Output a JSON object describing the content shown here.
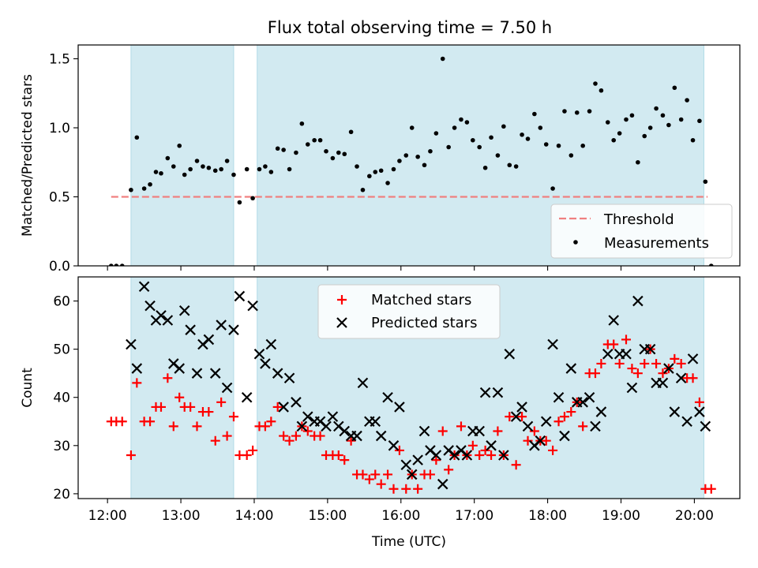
{
  "title": "Flux total observing time = 7.50 h",
  "colors": {
    "band": "#add8e6",
    "threshold": "#f08080",
    "measurement": "#000000",
    "matched": "#ff0000",
    "predicted": "#000000"
  },
  "chart_data": [
    {
      "type": "scatter",
      "panel": "top",
      "ylabel": "Matched/Predicted stars",
      "xlabel": "",
      "xlim": [
        11.6,
        20.62
      ],
      "ylim": [
        0.0,
        1.6
      ],
      "x_ticks": [
        12,
        13,
        14,
        15,
        16,
        17,
        18,
        19,
        20
      ],
      "y_ticks": [
        0.0,
        0.5,
        1.0,
        1.5
      ],
      "y_tick_labels": [
        "0.0",
        "0.5",
        "1.0",
        "1.5"
      ],
      "shaded_intervals": [
        [
          12.32,
          13.72
        ],
        [
          14.04,
          20.13
        ]
      ],
      "threshold": {
        "name": "Threshold",
        "value": 0.5,
        "x_range": [
          12.05,
          20.18
        ]
      },
      "legend": {
        "position": "bottom-right",
        "entries": [
          "Threshold",
          "Measurements"
        ]
      },
      "series": [
        {
          "name": "Measurements",
          "x": [
            12.05,
            12.12,
            12.2,
            12.32,
            12.4,
            12.5,
            12.58,
            12.66,
            12.73,
            12.82,
            12.9,
            12.98,
            13.05,
            13.13,
            13.22,
            13.3,
            13.38,
            13.47,
            13.55,
            13.63,
            13.72,
            13.8,
            13.9,
            13.98,
            14.07,
            14.15,
            14.23,
            14.32,
            14.4,
            14.48,
            14.57,
            14.65,
            14.73,
            14.82,
            14.9,
            14.98,
            15.07,
            15.15,
            15.23,
            15.32,
            15.4,
            15.48,
            15.57,
            15.65,
            15.73,
            15.82,
            15.9,
            15.98,
            16.07,
            16.15,
            16.23,
            16.32,
            16.4,
            16.48,
            16.57,
            16.65,
            16.73,
            16.82,
            16.9,
            16.98,
            17.07,
            17.15,
            17.23,
            17.32,
            17.4,
            17.48,
            17.57,
            17.65,
            17.73,
            17.82,
            17.9,
            17.98,
            18.07,
            18.15,
            18.23,
            18.32,
            18.4,
            18.48,
            18.57,
            18.65,
            18.73,
            18.82,
            18.9,
            18.98,
            19.07,
            19.15,
            19.23,
            19.32,
            19.4,
            19.48,
            19.57,
            19.65,
            19.73,
            19.82,
            19.9,
            19.98,
            20.07,
            20.15,
            20.23
          ],
          "y": [
            0.0,
            0.0,
            0.0,
            0.55,
            0.93,
            0.56,
            0.59,
            0.68,
            0.67,
            0.78,
            0.72,
            0.87,
            0.66,
            0.7,
            0.76,
            0.72,
            0.71,
            0.69,
            0.7,
            0.76,
            0.66,
            0.46,
            0.7,
            0.49,
            0.7,
            0.72,
            0.68,
            0.85,
            0.84,
            0.7,
            0.82,
            1.03,
            0.88,
            0.91,
            0.91,
            0.83,
            0.78,
            0.82,
            0.81,
            0.97,
            0.72,
            0.55,
            0.65,
            0.68,
            0.69,
            0.6,
            0.7,
            0.76,
            0.8,
            1.0,
            0.79,
            0.73,
            0.83,
            0.96,
            1.5,
            0.86,
            1.0,
            1.06,
            1.04,
            0.91,
            0.86,
            0.71,
            0.93,
            0.8,
            1.01,
            0.73,
            0.72,
            0.95,
            0.92,
            1.1,
            1.0,
            0.88,
            0.56,
            0.87,
            1.12,
            0.8,
            1.11,
            0.87,
            1.12,
            1.32,
            1.27,
            1.04,
            0.91,
            0.96,
            1.06,
            1.09,
            0.75,
            0.94,
            1.0,
            1.14,
            1.09,
            1.02,
            1.29,
            1.06,
            1.2,
            0.91,
            1.05,
            0.61,
            0.0
          ]
        }
      ]
    },
    {
      "type": "scatter",
      "panel": "bottom",
      "ylabel": "Count",
      "xlabel": "Time (UTC)",
      "xlim": [
        11.6,
        20.62
      ],
      "ylim": [
        19,
        65
      ],
      "x_ticks": [
        12,
        13,
        14,
        15,
        16,
        17,
        18,
        19,
        20
      ],
      "x_tick_labels": [
        "12:00",
        "13:00",
        "14:00",
        "15:00",
        "16:00",
        "17:00",
        "18:00",
        "19:00",
        "20:00"
      ],
      "y_ticks": [
        20,
        30,
        40,
        50,
        60
      ],
      "y_tick_labels": [
        "20",
        "30",
        "40",
        "50",
        "60"
      ],
      "shaded_intervals": [
        [
          12.32,
          13.72
        ],
        [
          14.04,
          20.13
        ]
      ],
      "legend": {
        "position": "top-center",
        "entries": [
          "Matched stars",
          "Predicted stars"
        ]
      },
      "series": [
        {
          "name": "Matched stars",
          "marker": "plus",
          "x": [
            12.05,
            12.12,
            12.2,
            12.32,
            12.4,
            12.5,
            12.58,
            12.66,
            12.73,
            12.82,
            12.9,
            12.98,
            13.05,
            13.13,
            13.22,
            13.3,
            13.38,
            13.47,
            13.55,
            13.63,
            13.72,
            13.8,
            13.9,
            13.98,
            14.07,
            14.15,
            14.23,
            14.32,
            14.4,
            14.48,
            14.57,
            14.65,
            14.73,
            14.82,
            14.9,
            14.98,
            15.07,
            15.15,
            15.23,
            15.32,
            15.4,
            15.48,
            15.57,
            15.65,
            15.73,
            15.82,
            15.9,
            15.98,
            16.07,
            16.15,
            16.23,
            16.32,
            16.4,
            16.48,
            16.57,
            16.65,
            16.73,
            16.82,
            16.9,
            16.98,
            17.07,
            17.15,
            17.23,
            17.32,
            17.4,
            17.48,
            17.57,
            17.65,
            17.73,
            17.82,
            17.9,
            17.98,
            18.07,
            18.15,
            18.23,
            18.32,
            18.4,
            18.48,
            18.57,
            18.65,
            18.73,
            18.82,
            18.9,
            18.98,
            19.07,
            19.15,
            19.23,
            19.32,
            19.4,
            19.48,
            19.57,
            19.65,
            19.73,
            19.82,
            19.9,
            19.98,
            20.07,
            20.15,
            20.23
          ],
          "y": [
            35,
            35,
            35,
            28,
            43,
            35,
            35,
            38,
            38,
            44,
            34,
            40,
            38,
            38,
            34,
            37,
            37,
            31,
            39,
            32,
            36,
            28,
            28,
            29,
            34,
            34,
            35,
            38,
            32,
            31,
            32,
            34,
            33,
            32,
            32,
            28,
            28,
            28,
            27,
            31,
            24,
            24,
            23,
            24,
            22,
            24,
            21,
            29,
            21,
            24,
            21,
            24,
            24,
            27,
            33,
            25,
            28,
            34,
            28,
            30,
            28,
            29,
            28,
            33,
            28,
            36,
            26,
            36,
            31,
            33,
            31,
            31,
            29,
            35,
            36,
            37,
            39,
            34,
            45,
            45,
            47,
            51,
            51,
            47,
            52,
            46,
            45,
            47,
            50,
            47,
            45,
            46,
            48,
            47,
            44,
            44,
            39,
            21,
            21
          ]
        },
        {
          "name": "Predicted stars",
          "marker": "x",
          "x": [
            12.32,
            12.4,
            12.5,
            12.58,
            12.66,
            12.73,
            12.82,
            12.9,
            12.98,
            13.05,
            13.13,
            13.22,
            13.3,
            13.38,
            13.47,
            13.55,
            13.63,
            13.72,
            13.8,
            13.9,
            13.98,
            14.07,
            14.15,
            14.23,
            14.32,
            14.4,
            14.48,
            14.57,
            14.65,
            14.73,
            14.82,
            14.9,
            14.98,
            15.07,
            15.15,
            15.23,
            15.32,
            15.4,
            15.48,
            15.57,
            15.65,
            15.73,
            15.82,
            15.9,
            15.98,
            16.07,
            16.15,
            16.23,
            16.32,
            16.4,
            16.48,
            16.57,
            16.65,
            16.73,
            16.82,
            16.9,
            16.98,
            17.07,
            17.15,
            17.23,
            17.32,
            17.4,
            17.48,
            17.57,
            17.65,
            17.73,
            17.82,
            17.9,
            17.98,
            18.07,
            18.15,
            18.23,
            18.32,
            18.4,
            18.48,
            18.57,
            18.65,
            18.73,
            18.82,
            18.9,
            18.98,
            19.07,
            19.15,
            19.23,
            19.32,
            19.4,
            19.48,
            19.57,
            19.65,
            19.73,
            19.82,
            19.9,
            19.98,
            20.07,
            20.15
          ],
          "y": [
            51,
            46,
            63,
            59,
            56,
            57,
            56,
            47,
            46,
            58,
            54,
            45,
            51,
            52,
            45,
            55,
            42,
            54,
            61,
            40,
            59,
            49,
            47,
            51,
            45,
            38,
            44,
            39,
            34,
            36,
            35,
            35,
            34,
            36,
            34,
            33,
            32,
            32,
            43,
            35,
            35,
            32,
            40,
            30,
            38,
            26,
            24,
            27,
            33,
            29,
            28,
            22,
            29,
            28,
            29,
            28,
            33,
            33,
            41,
            30,
            41,
            28,
            49,
            36,
            38,
            34,
            30,
            31,
            35,
            51,
            40,
            32,
            46,
            39,
            39,
            40,
            34,
            37,
            49,
            56,
            49,
            49,
            42,
            60,
            50,
            50,
            43,
            43,
            46,
            37,
            44,
            35,
            48,
            37,
            34
          ]
        }
      ]
    }
  ]
}
